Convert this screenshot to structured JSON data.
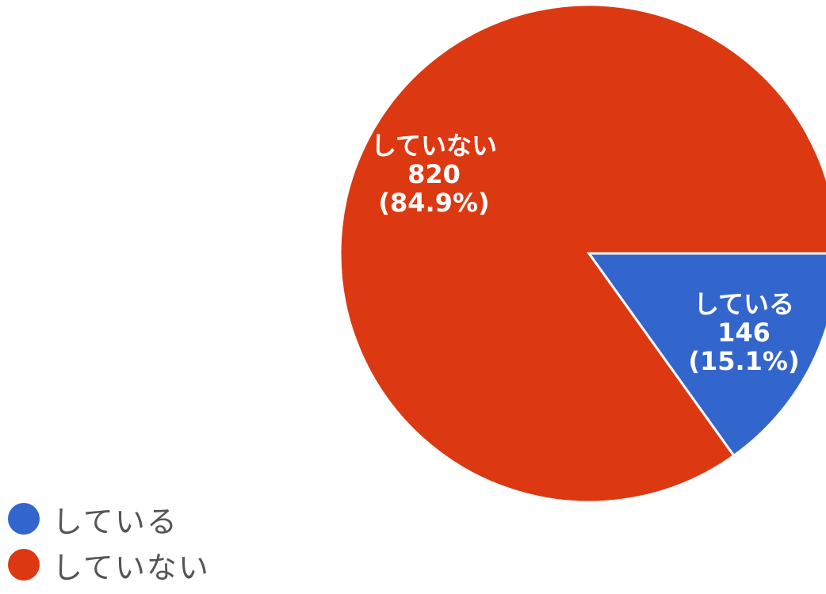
{
  "chart_data": {
    "type": "pie",
    "slices": [
      {
        "label": "している",
        "value": 146,
        "percent_label": "(15.1%)",
        "color": "#3366cc"
      },
      {
        "label": "していない",
        "value": 820,
        "percent_label": "(84.9%)",
        "color": "#dc3912"
      }
    ],
    "legend_position": "bottom-left",
    "start_angle_note": "slice 1 begins at 3 o'clock, clockwise"
  },
  "legend": [
    {
      "label": "している",
      "color": "#3366cc"
    },
    {
      "label": "していない",
      "color": "#dc3912"
    }
  ]
}
